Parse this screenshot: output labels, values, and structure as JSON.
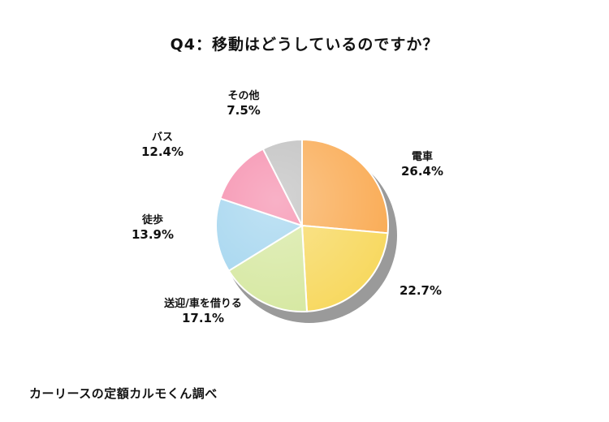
{
  "chart_data": {
    "type": "pie",
    "title": "Q4：移動はどうしているのですか？",
    "start_angle_deg": 0,
    "direction": "clockwise",
    "slices": [
      {
        "label": "電車",
        "value": 26.4,
        "value_label": "26.4%",
        "color": "#f9a84e"
      },
      {
        "label": "",
        "value": 22.7,
        "value_label": "22.7%",
        "color": "#f7d75a"
      },
      {
        "label": "送迎/車を借りる",
        "value": 17.1,
        "value_label": "17.1%",
        "color": "#d4e79d"
      },
      {
        "label": "徒歩",
        "value": 13.9,
        "value_label": "13.9%",
        "color": "#9fd3ee"
      },
      {
        "label": "バス",
        "value": 12.4,
        "value_label": "12.4%",
        "color": "#f587a8"
      },
      {
        "label": "その他",
        "value": 7.5,
        "value_label": "7.5%",
        "color": "#bdbdbd"
      }
    ]
  },
  "source": "カーリースの定額カルモくん調べ"
}
